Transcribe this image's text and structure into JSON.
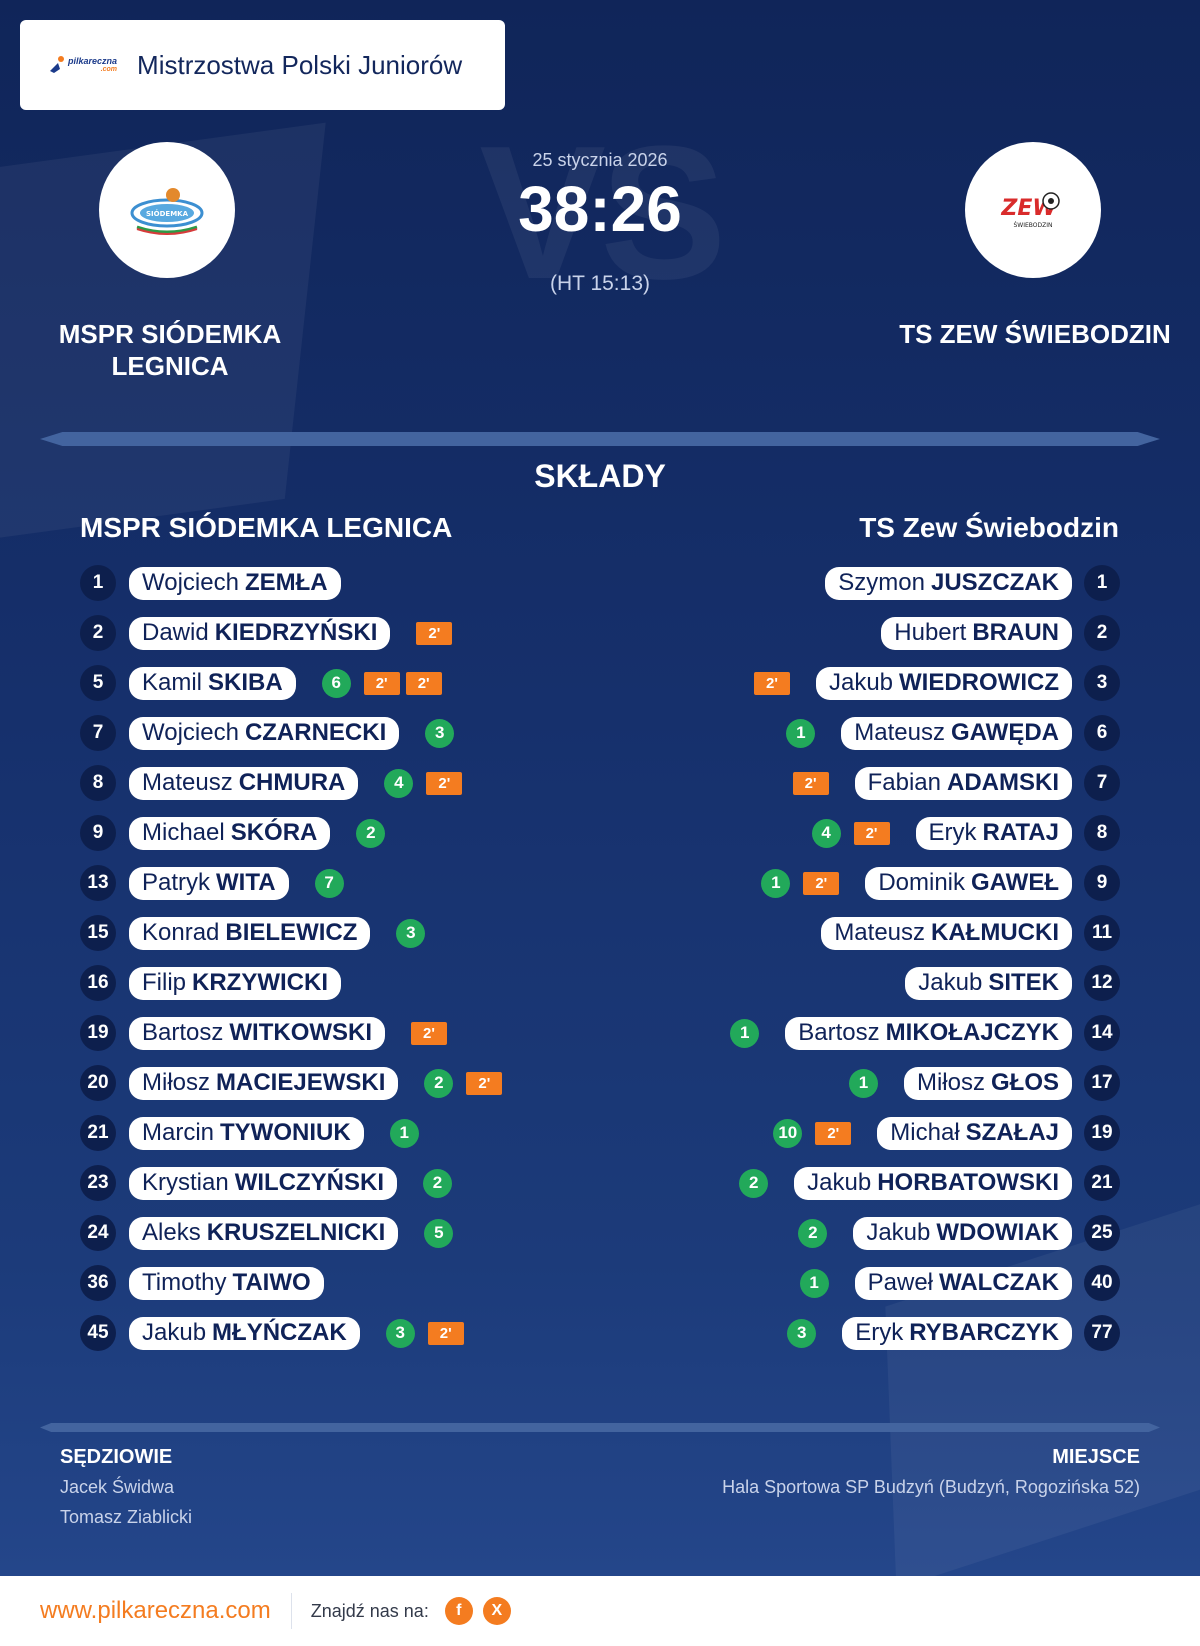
{
  "header": {
    "competition": "Mistrzostwa Polski Juniorów",
    "logo_word": "pilkareczna",
    "logo_sub": ".com"
  },
  "match": {
    "date": "25 stycznia 2026",
    "score": "38:26",
    "halftime": "(HT 15:13)",
    "home_name": "MSPR SIÓDEMKA LEGNICA",
    "away_name": "TS ZEW ŚWIEBODZIN",
    "home_logo_text": "SIÓDEMKA",
    "away_logo_text": "ZEW",
    "away_logo_sub": "ŚWIEBODZIN"
  },
  "lineups": {
    "title": "SKŁADY",
    "home_title": "MSPR SIÓDEMKA LEGNICA",
    "away_title": "TS Zew Świebodzin",
    "home": [
      {
        "number": "1",
        "first": "Wojciech",
        "last": "ZEMŁA",
        "goals": "",
        "suspensions": 0
      },
      {
        "number": "2",
        "first": "Dawid",
        "last": "KIEDRZYŃSKI",
        "goals": "",
        "suspensions": 1
      },
      {
        "number": "5",
        "first": "Kamil",
        "last": "SKIBA",
        "goals": "6",
        "suspensions": 2
      },
      {
        "number": "7",
        "first": "Wojciech",
        "last": "CZARNECKI",
        "goals": "3",
        "suspensions": 0
      },
      {
        "number": "8",
        "first": "Mateusz",
        "last": "CHMURA",
        "goals": "4",
        "suspensions": 1
      },
      {
        "number": "9",
        "first": "Michael",
        "last": "SKÓRA",
        "goals": "2",
        "suspensions": 0
      },
      {
        "number": "13",
        "first": "Patryk",
        "last": "WITA",
        "goals": "7",
        "suspensions": 0
      },
      {
        "number": "15",
        "first": "Konrad",
        "last": "BIELEWICZ",
        "goals": "3",
        "suspensions": 0
      },
      {
        "number": "16",
        "first": "Filip",
        "last": "KRZYWICKI",
        "goals": "",
        "suspensions": 0
      },
      {
        "number": "19",
        "first": "Bartosz",
        "last": "WITKOWSKI",
        "goals": "",
        "suspensions": 1
      },
      {
        "number": "20",
        "first": "Miłosz",
        "last": "MACIEJEWSKI",
        "goals": "2",
        "suspensions": 1
      },
      {
        "number": "21",
        "first": "Marcin",
        "last": "TYWONIUK",
        "goals": "1",
        "suspensions": 0
      },
      {
        "number": "23",
        "first": "Krystian",
        "last": "WILCZYŃSKI",
        "goals": "2",
        "suspensions": 0
      },
      {
        "number": "24",
        "first": "Aleks",
        "last": "KRUSZELNICKI",
        "goals": "5",
        "suspensions": 0
      },
      {
        "number": "36",
        "first": "Timothy",
        "last": "TAIWO",
        "goals": "",
        "suspensions": 0
      },
      {
        "number": "45",
        "first": "Jakub",
        "last": "MŁYŃCZAK",
        "goals": "3",
        "suspensions": 1
      }
    ],
    "away": [
      {
        "number": "1",
        "first": "Szymon",
        "last": "JUSZCZAK",
        "goals": "",
        "suspensions": 0
      },
      {
        "number": "2",
        "first": "Hubert",
        "last": "BRAUN",
        "goals": "",
        "suspensions": 0
      },
      {
        "number": "3",
        "first": "Jakub",
        "last": "WIEDROWICZ",
        "goals": "",
        "suspensions": 1
      },
      {
        "number": "6",
        "first": "Mateusz",
        "last": "GAWĘDA",
        "goals": "1",
        "suspensions": 0
      },
      {
        "number": "7",
        "first": "Fabian",
        "last": "ADAMSKI",
        "goals": "",
        "suspensions": 1
      },
      {
        "number": "8",
        "first": "Eryk",
        "last": "RATAJ",
        "goals": "4",
        "suspensions": 1
      },
      {
        "number": "9",
        "first": "Dominik",
        "last": "GAWEŁ",
        "goals": "1",
        "suspensions": 1
      },
      {
        "number": "11",
        "first": "Mateusz",
        "last": "KAŁMUCKI",
        "goals": "",
        "suspensions": 0
      },
      {
        "number": "12",
        "first": "Jakub",
        "last": "SITEK",
        "goals": "",
        "suspensions": 0
      },
      {
        "number": "14",
        "first": "Bartosz",
        "last": "MIKOŁAJCZYK",
        "goals": "1",
        "suspensions": 0
      },
      {
        "number": "17",
        "first": "Miłosz",
        "last": "GŁOS",
        "goals": "1",
        "suspensions": 0
      },
      {
        "number": "19",
        "first": "Michał",
        "last": "SZAŁAJ",
        "goals": "10",
        "suspensions": 1
      },
      {
        "number": "21",
        "first": "Jakub",
        "last": "HORBATOWSKI",
        "goals": "2",
        "suspensions": 0
      },
      {
        "number": "25",
        "first": "Jakub",
        "last": "WDOWIAK",
        "goals": "2",
        "suspensions": 0
      },
      {
        "number": "40",
        "first": "Paweł",
        "last": "WALCZAK",
        "goals": "1",
        "suspensions": 0
      },
      {
        "number": "77",
        "first": "Eryk",
        "last": "RYBARCZYK",
        "goals": "3",
        "suspensions": 0
      }
    ],
    "suspension_label": "2'"
  },
  "officials": {
    "referees_label": "SĘDZIOWIE",
    "referee_1": "Jacek Świdwa",
    "referee_2": "Tomasz Ziablicki",
    "venue_label": "MIEJSCE",
    "venue": "Hala Sportowa SP Budzyń (Budzyń, Rogozińska 52)"
  },
  "footer": {
    "site": "www.pilkareczna.com",
    "find_us": "Znajdź nas na:",
    "facebook": "f",
    "x": "X"
  },
  "colors": {
    "navy": "#13275c",
    "goal_green": "#22a95a",
    "suspension_orange": "#f47c20",
    "brand_orange": "#f47c20"
  }
}
